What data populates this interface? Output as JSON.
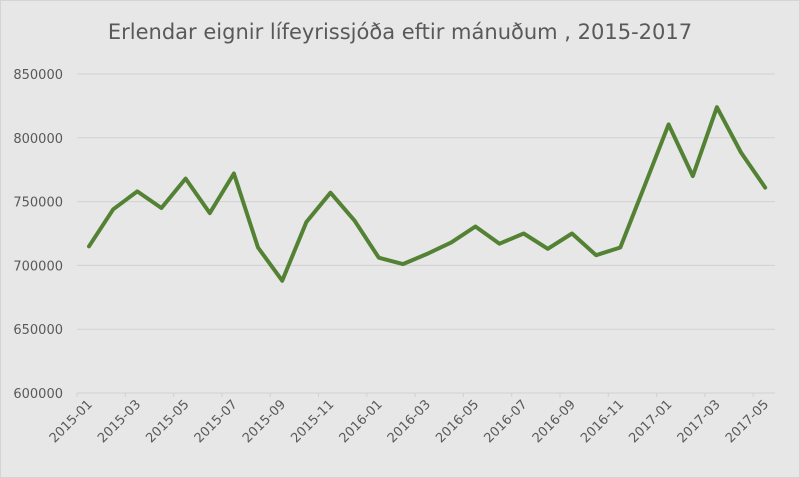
{
  "chart_data": {
    "type": "line",
    "title": "Erlendar eignir lífeyrissjóða eftir mánuðum , 2015-2017",
    "xlabel": "",
    "ylabel": "",
    "ylim": [
      600000,
      850000
    ],
    "yticks": [
      600000,
      650000,
      700000,
      750000,
      800000,
      850000
    ],
    "ytick_labels": [
      "600000",
      "650000",
      "700000",
      "750000",
      "800000",
      "850000"
    ],
    "grid": true,
    "legend": null,
    "x": [
      "2015-01",
      "2015-02",
      "2015-03",
      "2015-04",
      "2015-05",
      "2015-06",
      "2015-07",
      "2015-08",
      "2015-09",
      "2015-10",
      "2015-11",
      "2015-12",
      "2016-01",
      "2016-02",
      "2016-03",
      "2016-04",
      "2016-05",
      "2016-06",
      "2016-07",
      "2016-08",
      "2016-09",
      "2016-10",
      "2016-11",
      "2016-12",
      "2017-01",
      "2017-02",
      "2017-03",
      "2017-04",
      "2017-05"
    ],
    "xtick_labels": [
      "2015-01",
      "2015-03",
      "2015-05",
      "2015-07",
      "2015-09",
      "2015-11",
      "2016-01",
      "2016-03",
      "2016-05",
      "2016-07",
      "2016-09",
      "2016-11",
      "2017-01",
      "2017-03",
      "2017-05"
    ],
    "series": [
      {
        "name": "Erlendar eignir",
        "color": "#548235",
        "values": [
          715000,
          744000,
          758000,
          745000,
          768000,
          741000,
          772000,
          714000,
          688000,
          734000,
          757000,
          735000,
          706000,
          701000,
          709000,
          718000,
          730500,
          717000,
          725000,
          713000,
          725000,
          708000,
          714000,
          762000,
          810500,
          770000,
          824000,
          788500,
          761000
        ]
      }
    ]
  },
  "colors": {
    "background": "#e7e7e7",
    "gridline": "#d2d2d2",
    "text": "#595959",
    "line": "#548235"
  }
}
